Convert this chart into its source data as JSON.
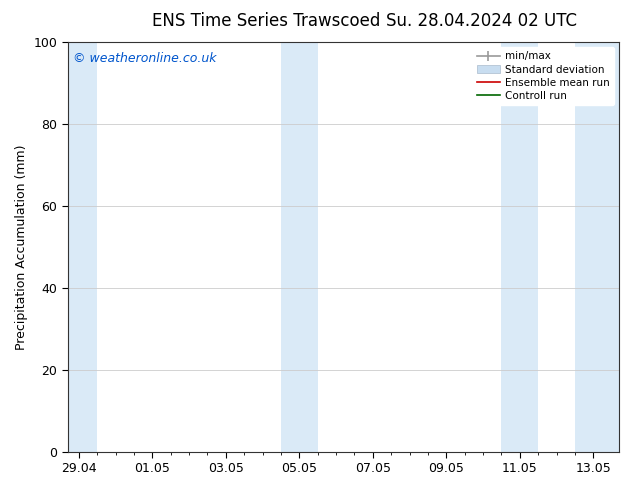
{
  "title_left": "ENS Time Series Trawscoed",
  "title_right": "Su. 28.04.2024 02 UTC",
  "ylabel": "Precipitation Accumulation (mm)",
  "watermark": "© weatheronline.co.uk",
  "watermark_color": "#0055cc",
  "ylim": [
    0,
    100
  ],
  "yticks": [
    0,
    20,
    40,
    60,
    80,
    100
  ],
  "x_tick_labels": [
    "29.04",
    "01.05",
    "03.05",
    "05.05",
    "07.05",
    "09.05",
    "11.05",
    "13.05"
  ],
  "shade_color": "#daeaf7",
  "legend_labels": [
    "min/max",
    "Standard deviation",
    "Ensemble mean run",
    "Controll run"
  ],
  "legend_colors": [
    "#999999",
    "#c8ddf0",
    "#cc0000",
    "#006600"
  ],
  "bg_color": "#ffffff",
  "grid_color": "#cccccc",
  "title_fontsize": 12,
  "tick_fontsize": 9,
  "ylabel_fontsize": 9,
  "watermark_fontsize": 9
}
